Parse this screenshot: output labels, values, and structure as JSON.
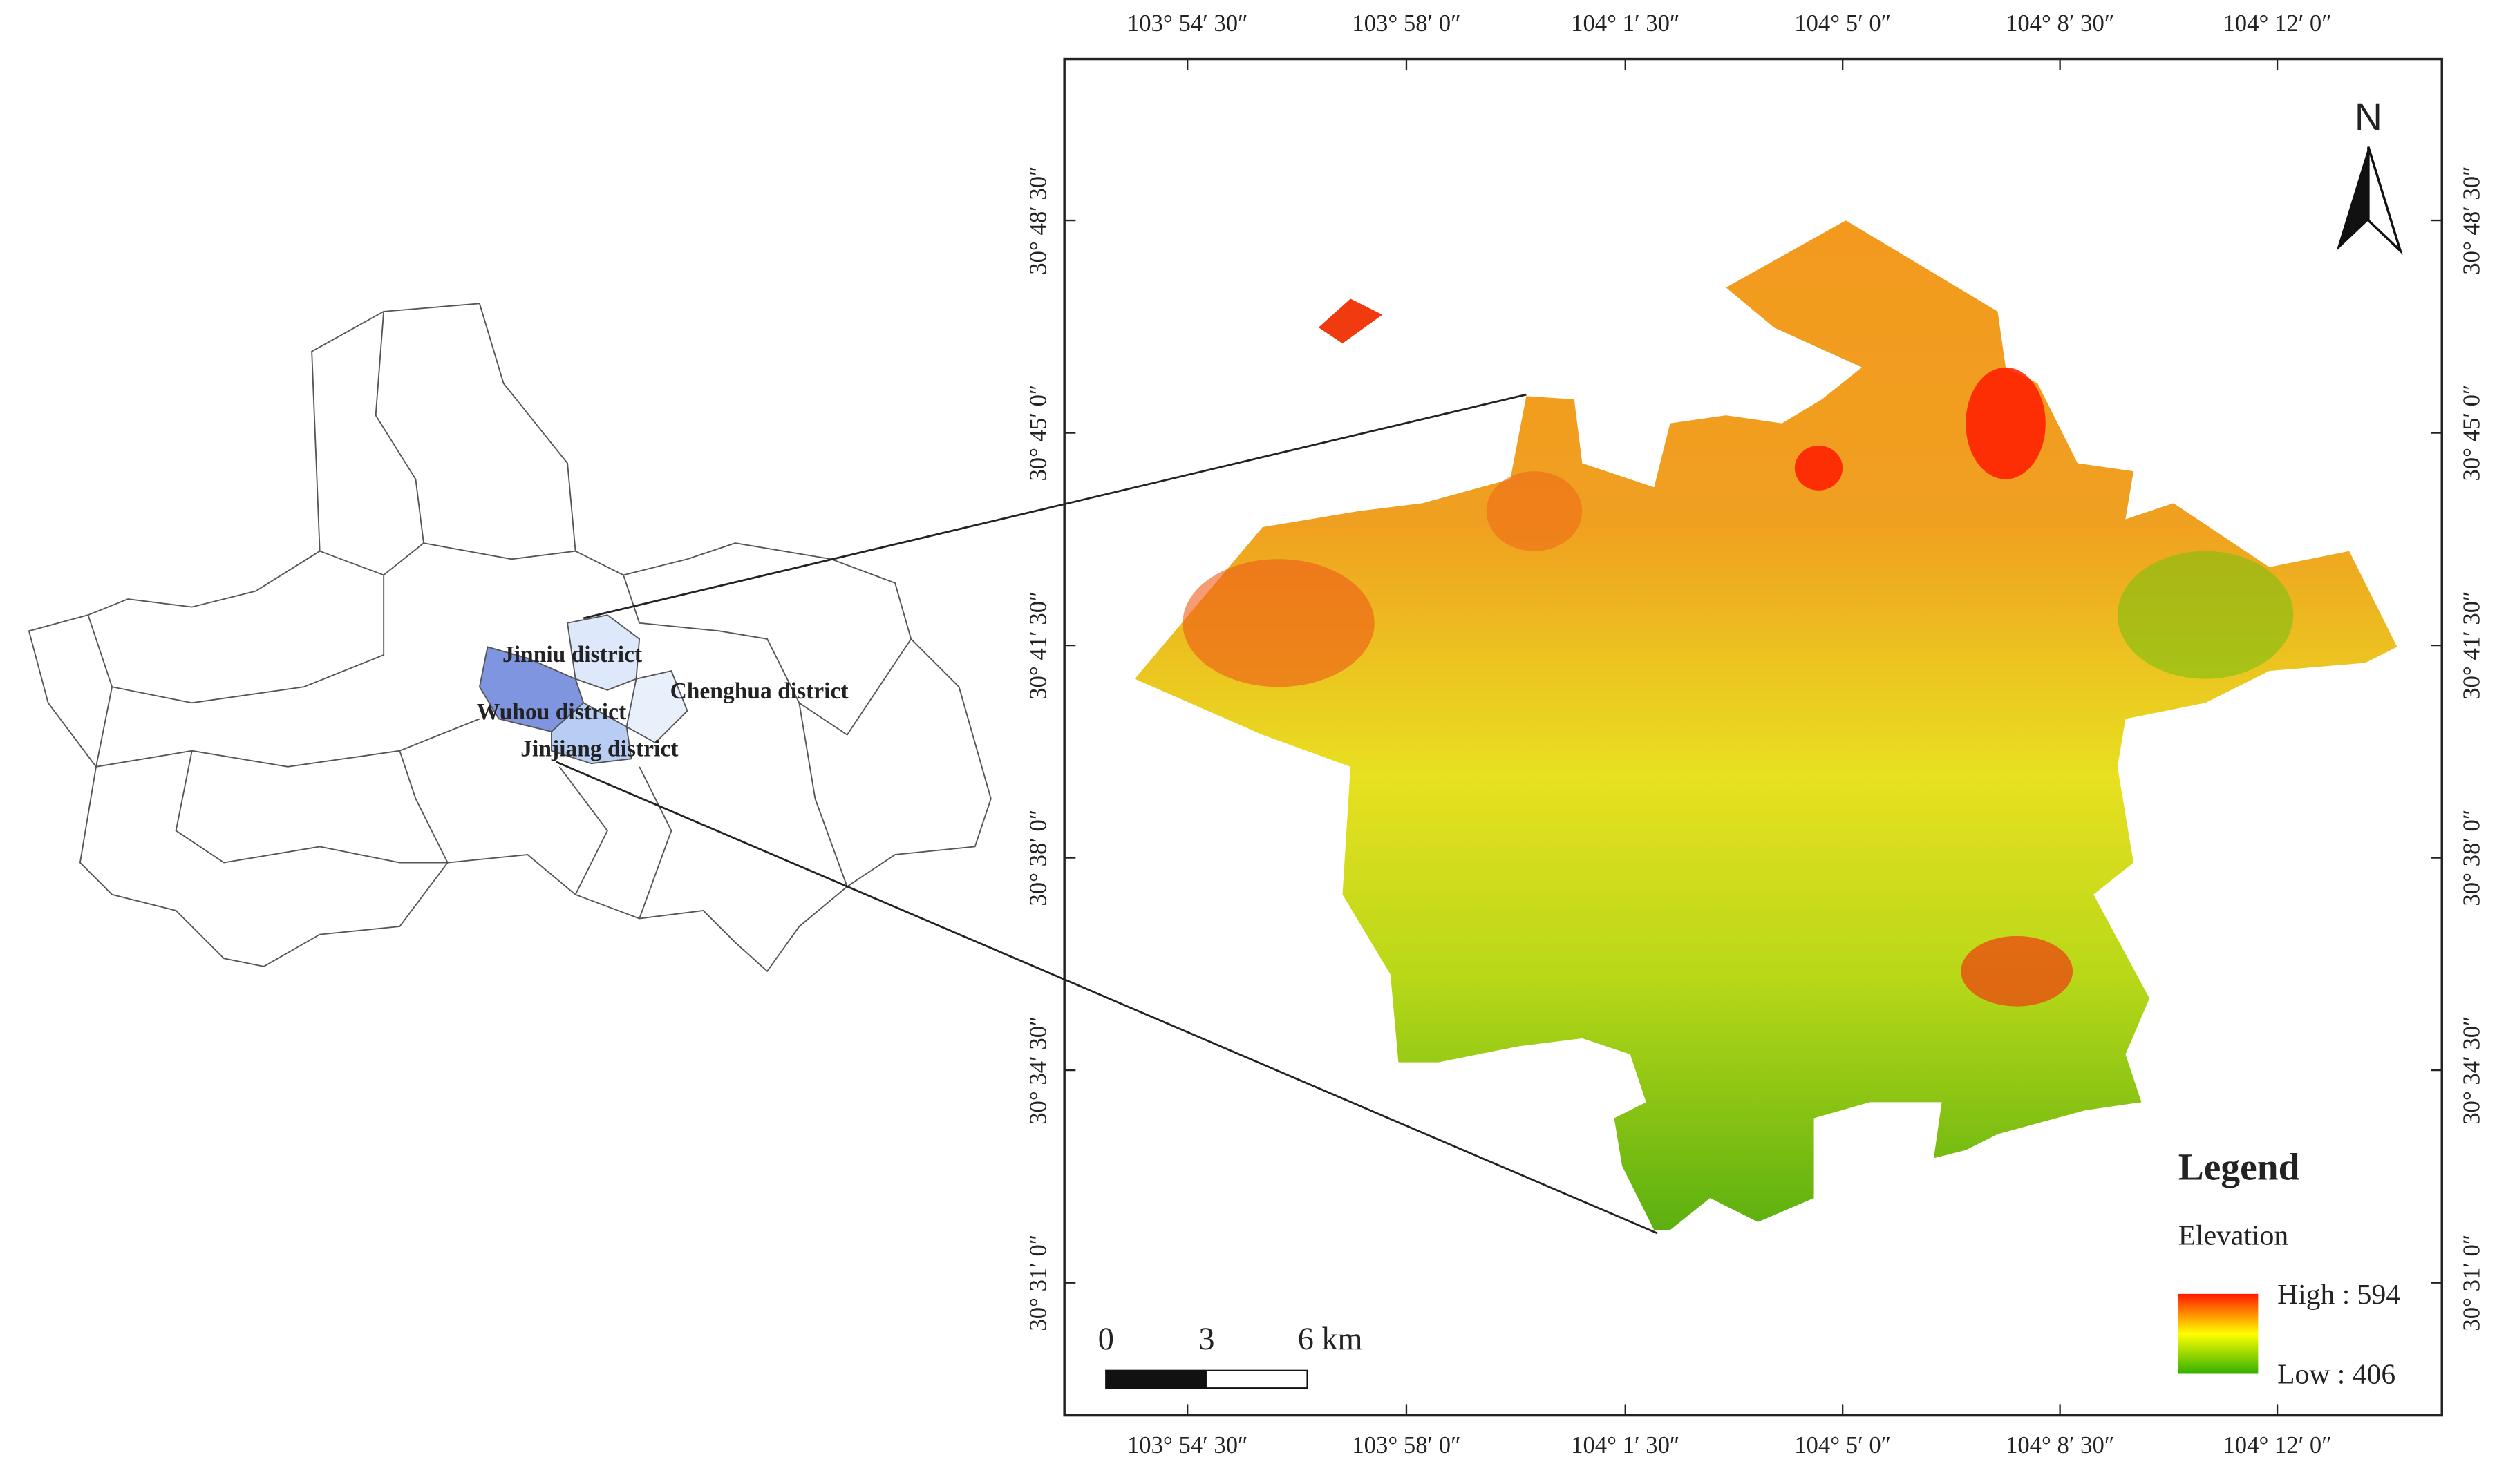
{
  "north": "N",
  "longitude_labels": [
    "103° 54′ 30″",
    "103° 58′ 0″",
    "104° 1′ 30″",
    "104° 5′ 0″",
    "104° 8′ 30″",
    "104° 12′ 0″"
  ],
  "latitude_labels": [
    "30° 48′ 30″",
    "30° 45′ 0″",
    "30° 41′ 30″",
    "30° 38′ 0″",
    "30° 34′ 30″",
    "30° 31′ 0″"
  ],
  "districts": [
    "Jinniu district",
    "Wuhou district",
    "Chenghua district",
    "Jinjiang district"
  ],
  "legend": {
    "title": "Legend",
    "subtitle": "Elevation",
    "high": "High : 594",
    "low": "Low : 406"
  },
  "scale_bar": [
    "0",
    "3",
    "6 km"
  ]
}
